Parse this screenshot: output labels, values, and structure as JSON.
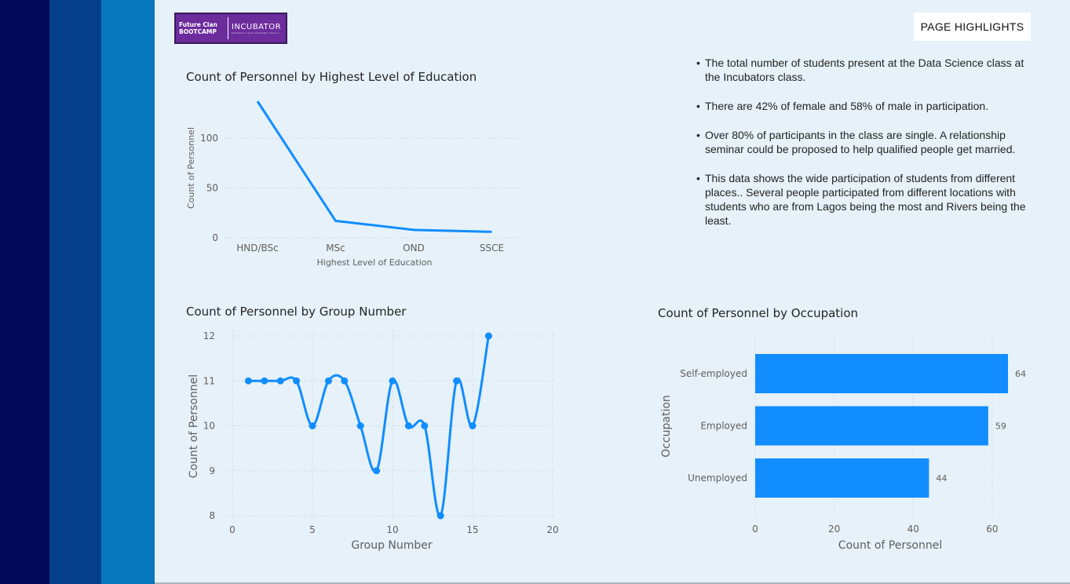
{
  "logo": {
    "line1": "Future Clan",
    "line2": "BOOTCAMP",
    "brand": "INCUBATOR",
    "tagline": "Fieldwork and strategic fission"
  },
  "page_highlights_button": "PAGE HIGHLIGHTS",
  "highlights": [
    "The total number of students present at the Data Science class at the Incubators class.",
    "There are 42% of female and 58% of  male in participation.",
    "Over 80% of participants in the class are single. A relationship seminar could be proposed to help qualified people get married.",
    "This data shows the wide participation of students from different places.. Several people participated from different locations with students who are from Lagos being the most and Rivers being the least."
  ],
  "colors": {
    "series": "#118dff",
    "stripe_dark": "#02075a",
    "stripe_mid": "#053f8b",
    "stripe_light": "#0778be",
    "background": "#e6f1f9"
  },
  "chart_data": [
    {
      "id": "education",
      "type": "line",
      "title": "Count of Personnel by Highest Level of Education",
      "xlabel": "Highest Level of Education",
      "ylabel": "Count of Personnel",
      "categories": [
        "HND/BSc",
        "MSc",
        "OND",
        "SSCE"
      ],
      "values": [
        137,
        17,
        8,
        6
      ],
      "ylim": [
        0,
        137
      ],
      "yticks": [
        0,
        50,
        100
      ],
      "grid": true
    },
    {
      "id": "group",
      "type": "line",
      "title": "Count of Personnel by Group Number",
      "xlabel": "Group Number",
      "ylabel": "Count of Personnel",
      "x": [
        1,
        2,
        3,
        4,
        5,
        6,
        7,
        8,
        9,
        10,
        11,
        12,
        13,
        14,
        15,
        16
      ],
      "y": [
        11,
        11,
        11,
        11,
        10,
        11,
        11,
        10,
        9,
        11,
        10,
        10,
        8,
        11,
        10,
        12
      ],
      "xlim": [
        0,
        20
      ],
      "ylim": [
        8,
        12
      ],
      "xticks": [
        0,
        5,
        10,
        15,
        20
      ],
      "yticks": [
        8,
        9,
        10,
        11,
        12
      ],
      "grid": true
    },
    {
      "id": "occupation",
      "type": "bar",
      "orientation": "horizontal",
      "title": "Count of Personnel by Occupation",
      "xlabel": "Count of Personnel",
      "ylabel": "Occupation",
      "categories": [
        "Self-employed",
        "Employed",
        "Unemployed"
      ],
      "values": [
        64,
        59,
        44
      ],
      "xlim": [
        0,
        64
      ],
      "xticks": [
        0,
        20,
        40,
        60
      ],
      "grid": true
    }
  ]
}
